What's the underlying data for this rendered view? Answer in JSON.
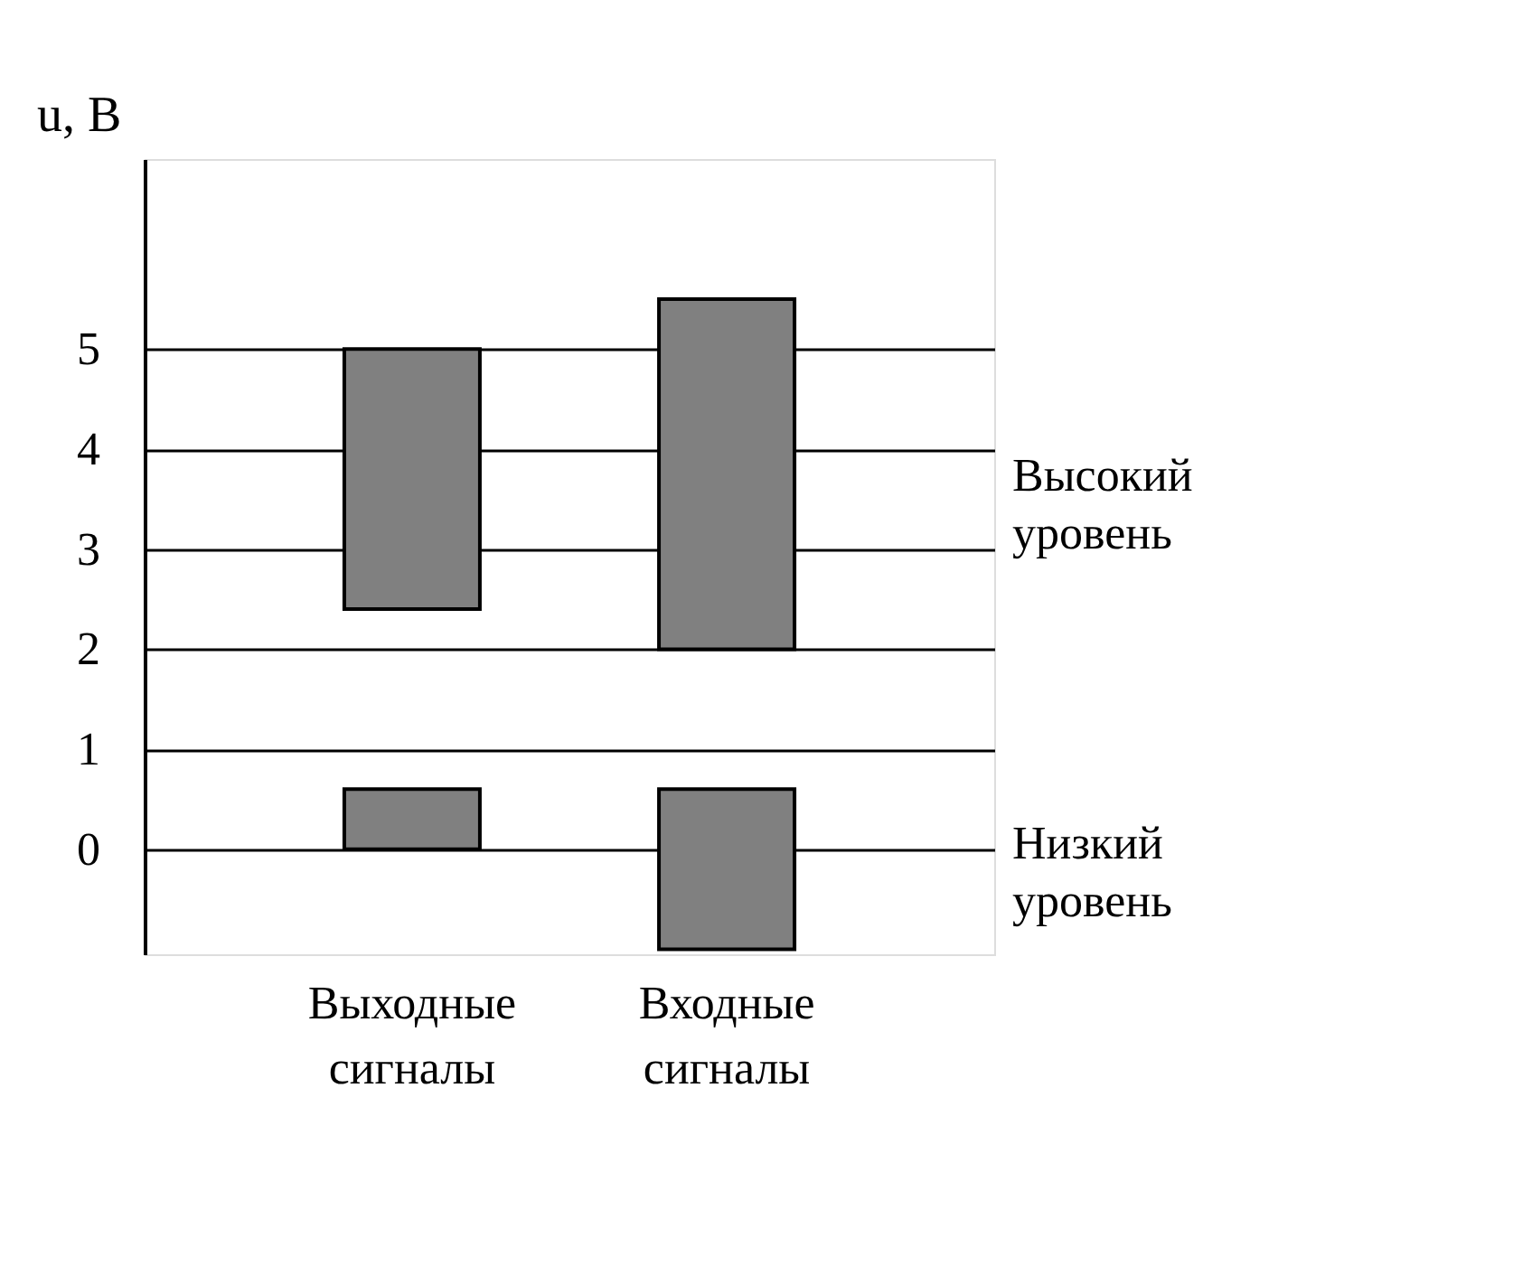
{
  "chart_data": {
    "type": "bar",
    "ylabel": "u, В",
    "categories": [
      "Выходные сигналы",
      "Входные сигналы"
    ],
    "series": [
      {
        "color": "#808080",
        "values": [
          2.6,
          3.5
        ],
        "base": [
          2.4,
          2
        ]
      },
      {
        "color": "#808080",
        "values": [
          0.6,
          1.6
        ],
        "base": [
          0,
          -1
        ]
      }
    ],
    "ylim": [
      -1.05,
      6.9
    ],
    "yticks": [
      0,
      1,
      2,
      3,
      4,
      5
    ],
    "grid": "y",
    "legend": false,
    "annotations": [
      "Высокий уровень",
      "Низкий уровень"
    ]
  }
}
